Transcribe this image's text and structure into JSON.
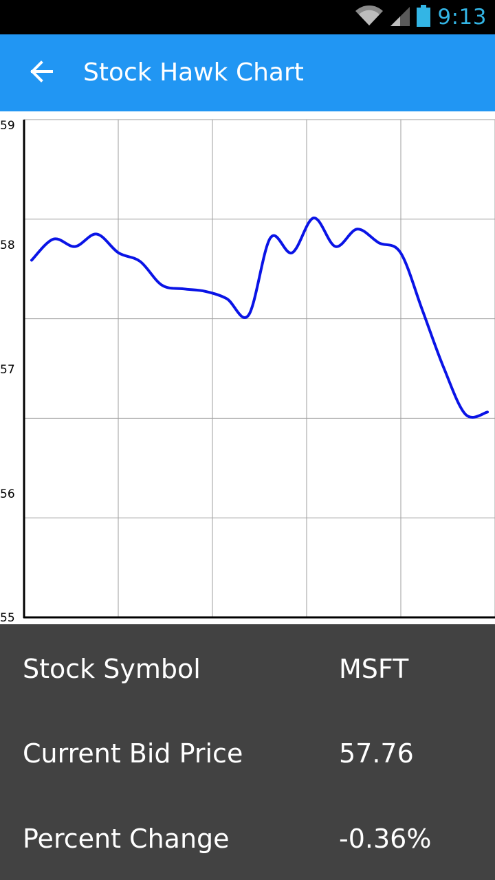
{
  "status_bar": {
    "time": "9:13",
    "icons": [
      "wifi-icon",
      "cell-signal-icon",
      "battery-icon"
    ],
    "accent_color": "#33b5e5"
  },
  "app_bar": {
    "title": "Stock Hawk Chart",
    "back_icon": "arrow-left-icon",
    "color": "#2196f3"
  },
  "chart_data": {
    "type": "line",
    "y_ticks": [
      "55",
      "56",
      "57",
      "58",
      "59"
    ],
    "ylim": [
      55,
      59
    ],
    "grid": true,
    "line_color": "#0a14e6",
    "series": [
      {
        "values": [
          57.87,
          58.04,
          57.98,
          58.08,
          57.93,
          57.86,
          57.67,
          57.64,
          57.62,
          57.56,
          57.43,
          58.05,
          57.93,
          58.21,
          57.98,
          58.12,
          58.01,
          57.93,
          57.47,
          57.0,
          56.63,
          56.65
        ]
      }
    ]
  },
  "details": {
    "rows": [
      {
        "label": "Stock Symbol",
        "value": "MSFT"
      },
      {
        "label": "Current Bid Price",
        "value": "57.76"
      },
      {
        "label": "Percent Change",
        "value": "-0.36%"
      }
    ]
  }
}
